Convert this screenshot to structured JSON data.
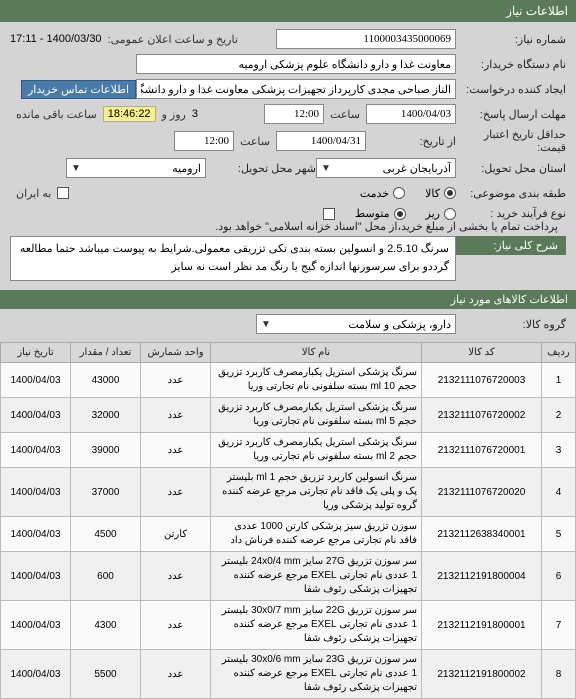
{
  "headers": {
    "info_bar": "اطلاعات نیاز"
  },
  "form": {
    "need_no_label": "شماره نیاز:",
    "need_no": "1100003435000069",
    "announce_label": "تاریخ و ساعت اعلان عمومی:",
    "announce_value": "1400/03/30 - 17:11",
    "buyer_org_label": "نام دستگاه خریدار:",
    "buyer_org": "معاونت غذا و دارو دانشگاه علوم پزشکی ارومیه",
    "creator_label": "ایجاد کننده درخواست:",
    "creator": "الناز صباحی مجدی کارپرداز تجهیزات پزشکی معاونت غذا و دارو دانشگاه علوم پز",
    "contact_link": "اطلاعات تماس خریدار",
    "deadline_label": "مهلت ارسال پاسخ:",
    "deadline_date": "1400/04/03",
    "deadline_time": "12:00",
    "time_lbl": "ساعت",
    "remaining_days": "3",
    "day_lbl": "روز و",
    "remaining_time": "18:46:22",
    "remaining_suffix": "ساعت باقی مانده",
    "validity_label": "حداقل تاریخ اعتبار قیمت:",
    "validity_from_lbl": "از تاریخ:",
    "validity_date": "1400/04/31",
    "validity_time": "12:00",
    "delivery_province_label": "استان محل تحویل:",
    "delivery_province": "آذربایجان غربی",
    "delivery_city_label": "شهر محل تحویل:",
    "delivery_city": "ارومیه",
    "basket_label": "طبقه بندی موضوعی:",
    "option_goods": "کالا",
    "option_service": "خدمت",
    "iran_label": "به ایران",
    "process_label": "نوع فرآیند خرید :",
    "proc_detail": "ریز",
    "proc_medium": "متوسط",
    "pay_note": "پرداخت تمام یا بخشی از مبلغ خرید،از محل \"اسناد خزانه اسلامی\" خواهد بود.",
    "general_label": "شرح کلی نیاز:",
    "general_desc": "سرنگ 2.5.10 و انسولین بسته بندی تکی تزریقی معمولی.شرایط به پیوست میباشد حتما مطالعه گرددو برای سرسوزنها اندازه گیج یا رنگ مد نظر است نه سایز",
    "items_label": "اطلاعات کالاهای مورد نیاز",
    "group_label": "گروه کالا:",
    "group_value": "دارو، پزشکی و سلامت"
  },
  "table": {
    "cols": {
      "row": "ردیف",
      "code": "کد کالا",
      "name": "نام کالا",
      "unit": "واحد شمارش",
      "qty": "تعداد / مقدار",
      "date": "تاریخ نیاز"
    },
    "rows": [
      {
        "n": "1",
        "code": "2132111076720003",
        "name": "سرنگ پزشکی استریل یکبارمصرف کاربرد تزریق حجم 10 ml بسته سلفونی نام تجارتی وریا",
        "unit": "عدد",
        "qty": "43000",
        "date": "1400/04/03"
      },
      {
        "n": "2",
        "code": "2132111076720002",
        "name": "سرنگ پزشکی استریل یکبارمصرف کاربرد تزریق حجم 5 ml بسته سلفونی نام تجارتی وریا",
        "unit": "عدد",
        "qty": "32000",
        "date": "1400/04/03"
      },
      {
        "n": "3",
        "code": "2132111076720001",
        "name": "سرنگ پزشکی استریل یکبارمصرف کاربرد تزریق حجم 2 ml بسته سلفونی نام تجارتی وریا",
        "unit": "عدد",
        "qty": "39000",
        "date": "1400/04/03"
      },
      {
        "n": "4",
        "code": "2132111076720020",
        "name": "سرنگ انسولین کاربرد تزریق حجم 1 ml بلیستر پک و پلی یک فاقد نام تجارتی مرجع عرضه کننده گروه تولید پزشکی وریا",
        "unit": "عدد",
        "qty": "37000",
        "date": "1400/04/03"
      },
      {
        "n": "5",
        "code": "2132112638340001",
        "name": "سوزن تزریق سیز پزشکی کارتن 1000 عددی فاقد نام تجارتی مرجع عرضه کننده فرناش داد",
        "unit": "کارتن",
        "qty": "4500",
        "date": "1400/04/03"
      },
      {
        "n": "6",
        "code": "2132112191800004",
        "name": "سر سوزن تزریق 27G سایز 24x0/4 mm بلیستر 1 عددی نام تجارتی EXEL مرجع عرضه کننده تجهیزات پزشکی رئوف شفا",
        "unit": "عدد",
        "qty": "600",
        "date": "1400/04/03"
      },
      {
        "n": "7",
        "code": "2132112191800001",
        "name": "سر سوزن تزریق 22G سایز 30x0/7 mm بلیستر 1 عددی نام تجارتی EXEL مرجع عرضه کننده تجهیزات پزشکی رئوف شفا",
        "unit": "عدد",
        "qty": "4300",
        "date": "1400/04/03"
      },
      {
        "n": "8",
        "code": "2132112191800002",
        "name": "سر سوزن تزریق 23G سایز 30x0/6 mm بلیستر 1 عددی نام تجارتی EXEL مرجع عرضه کننده تجهیزات پزشکی رئوف شفا",
        "unit": "عدد",
        "qty": "5500",
        "date": "1400/04/03"
      }
    ]
  }
}
